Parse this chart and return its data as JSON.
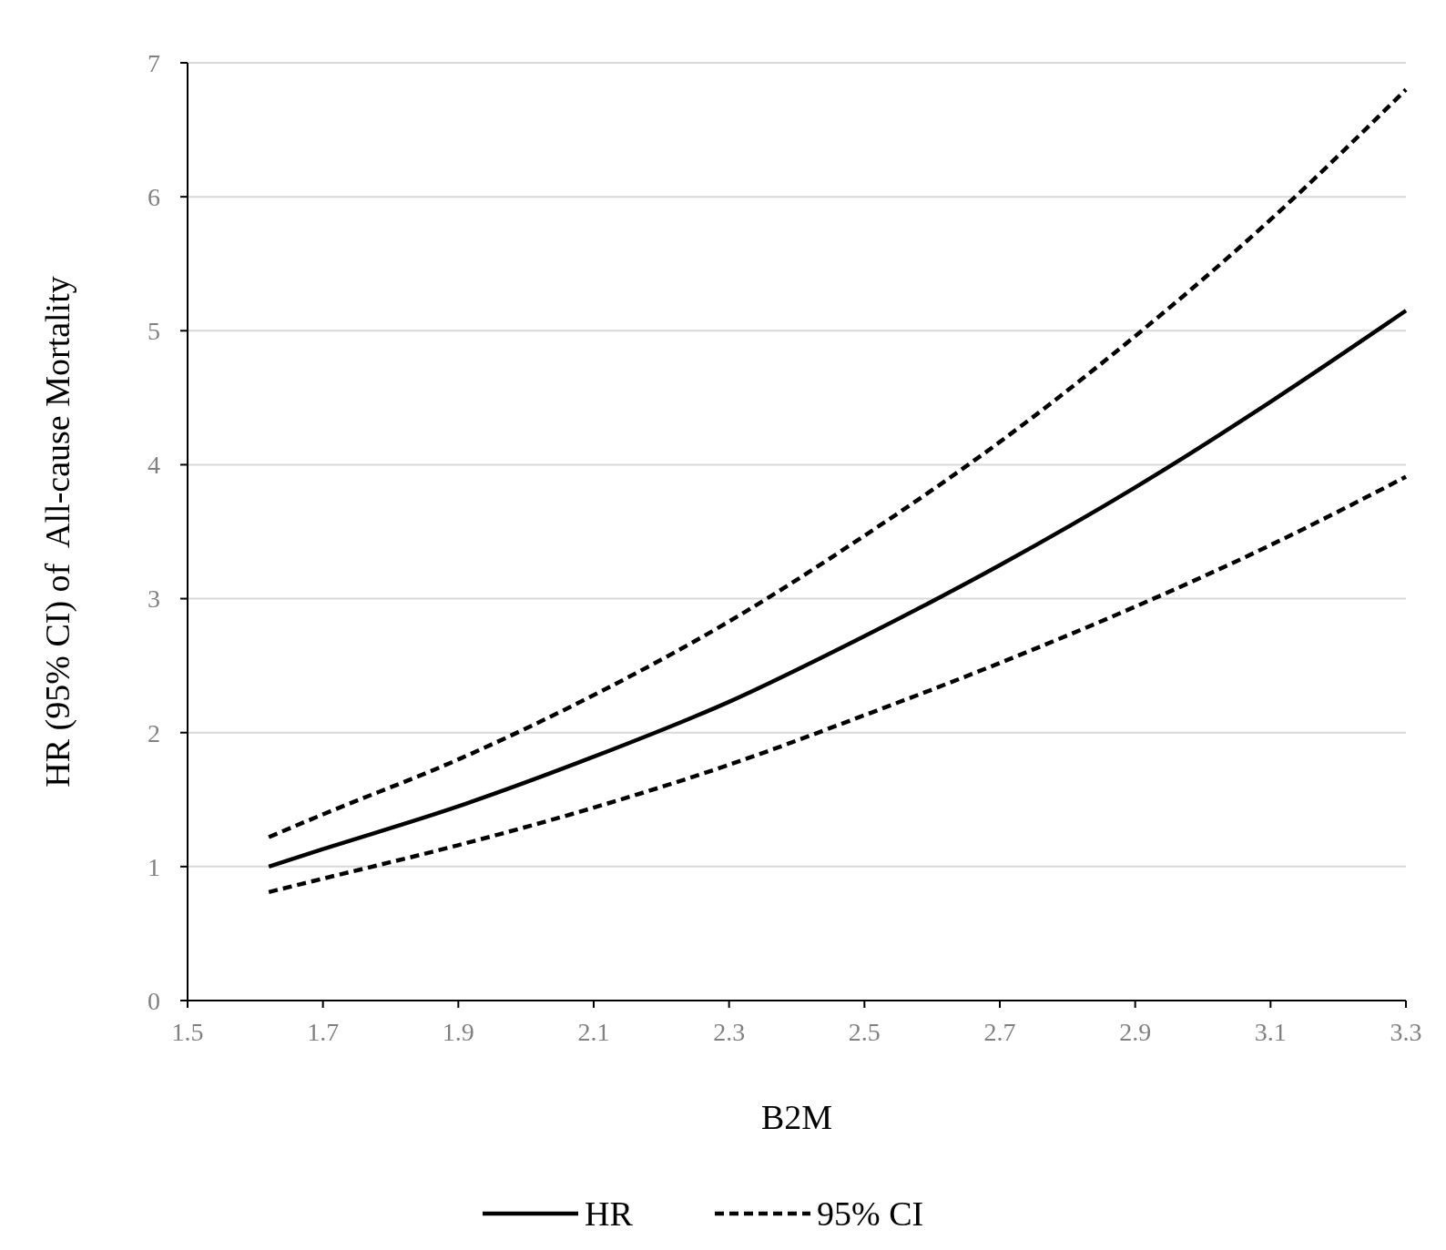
{
  "chart_data": {
    "type": "line",
    "xlabel": "B2M",
    "ylabel": "HR (95% CI) of  All-cause Mortality",
    "x": [
      1.62,
      1.7,
      1.9,
      2.1,
      2.3,
      2.5,
      2.7,
      2.9,
      3.1,
      3.3
    ],
    "series": [
      {
        "name": "HR",
        "color": "#000000",
        "line_style": "solid",
        "values": [
          1.0,
          1.13,
          1.45,
          1.82,
          2.23,
          2.72,
          3.25,
          3.83,
          4.47,
          5.15
        ]
      },
      {
        "name": "95% CI",
        "color": "#000000",
        "line_style": "dashed",
        "values": [
          1.22,
          1.39,
          1.8,
          2.28,
          2.83,
          3.47,
          4.17,
          4.96,
          5.83,
          6.8
        ]
      },
      {
        "color": "#000000",
        "line_style": "dashed",
        "values": [
          0.81,
          0.91,
          1.16,
          1.44,
          1.76,
          2.13,
          2.52,
          2.94,
          3.4,
          3.91
        ]
      }
    ],
    "xlim": [
      1.5,
      3.3
    ],
    "xticks": [
      1.5,
      1.7,
      1.9,
      2.1,
      2.3,
      2.5,
      2.7,
      2.9,
      3.1,
      3.3
    ],
    "ylim": [
      0,
      7
    ],
    "yticks": [
      0,
      1,
      2,
      3,
      4,
      5,
      6,
      7
    ],
    "grid": "y",
    "legend": "bottom"
  }
}
